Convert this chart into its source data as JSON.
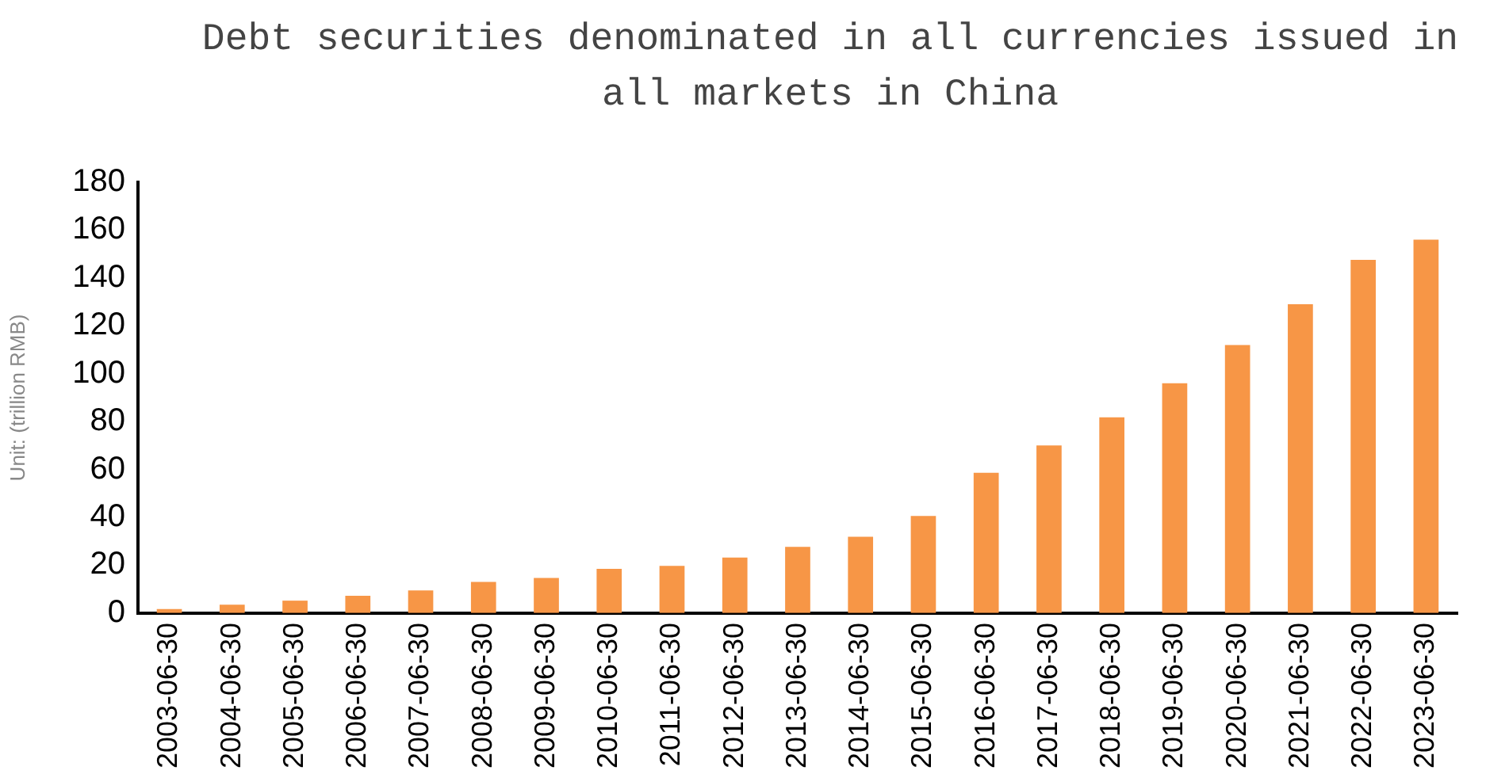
{
  "chart_data": {
    "type": "bar",
    "title": "Debt securities denominated in all currencies issued in all markets in China",
    "ylabel": "Unit: (trillion RMB)",
    "categories": [
      "2003-06-30",
      "2004-06-30",
      "2005-06-30",
      "2006-06-30",
      "2007-06-30",
      "2008-06-30",
      "2009-06-30",
      "2010-06-30",
      "2011-06-30",
      "2012-06-30",
      "2013-06-30",
      "2014-06-30",
      "2015-06-30",
      "2016-06-30",
      "2017-06-30",
      "2018-06-30",
      "2019-06-30",
      "2020-06-30",
      "2021-06-30",
      "2022-06-30",
      "2023-06-30"
    ],
    "values": [
      1.7,
      3.5,
      5.2,
      7.2,
      9.5,
      13,
      14.7,
      18.5,
      19.7,
      23.2,
      27.7,
      31.9,
      40.6,
      58.6,
      70,
      81.8,
      96,
      112,
      129,
      147.6,
      156
    ],
    "color": "#f79646",
    "ylim": [
      0,
      180
    ],
    "yticks": [
      0,
      20,
      40,
      60,
      80,
      100,
      120,
      140,
      160,
      180
    ],
    "grid": false,
    "legend": false
  }
}
